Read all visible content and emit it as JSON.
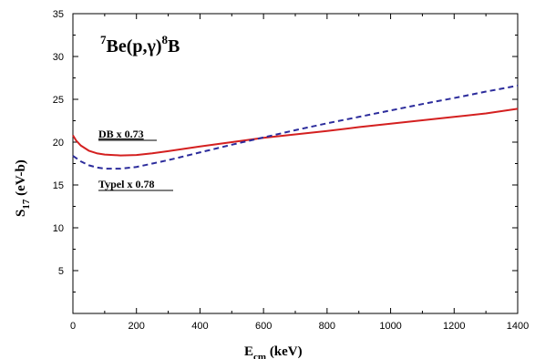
{
  "chart_data": {
    "type": "line",
    "title_parts": {
      "mass_a": "7",
      "reaction": "Be(p,",
      "gamma": "γ",
      "close": ")",
      "mass_b": "8",
      "product": "B"
    },
    "xlabel": {
      "main": "E",
      "sub": "cm",
      "unit": " (keV)"
    },
    "ylabel": {
      "main": "S",
      "sub": "17",
      "unit": " (eV-b)"
    },
    "xlim": [
      0,
      1400
    ],
    "ylim": [
      0,
      35
    ],
    "xticks": [
      "0",
      "200",
      "400",
      "600",
      "800",
      "1000",
      "1200",
      "1400"
    ],
    "yticks": [
      "5",
      "10",
      "15",
      "20",
      "25",
      "30",
      "35"
    ],
    "grid": false,
    "series": [
      {
        "name": "DB x 0.73",
        "color": "#d42020",
        "style": "solid",
        "x": [
          0,
          10,
          25,
          50,
          75,
          100,
          150,
          200,
          250,
          300,
          400,
          500,
          600,
          700,
          800,
          900,
          1000,
          1100,
          1200,
          1300,
          1400
        ],
        "y": [
          20.8,
          20.2,
          19.6,
          19.0,
          18.7,
          18.55,
          18.45,
          18.5,
          18.7,
          18.95,
          19.5,
          20.0,
          20.5,
          20.9,
          21.3,
          21.75,
          22.15,
          22.55,
          22.95,
          23.35,
          23.9
        ]
      },
      {
        "name": "Typel x 0.78",
        "color": "#2c2c9c",
        "style": "dashed",
        "x": [
          0,
          25,
          50,
          75,
          100,
          150,
          200,
          250,
          300,
          400,
          500,
          600,
          700,
          800,
          900,
          1000,
          1100,
          1200,
          1300,
          1400
        ],
        "y": [
          18.4,
          17.75,
          17.3,
          17.05,
          16.9,
          16.9,
          17.1,
          17.5,
          17.9,
          18.8,
          19.7,
          20.55,
          21.4,
          22.2,
          22.95,
          23.7,
          24.45,
          25.15,
          25.9,
          26.6
        ]
      }
    ]
  }
}
